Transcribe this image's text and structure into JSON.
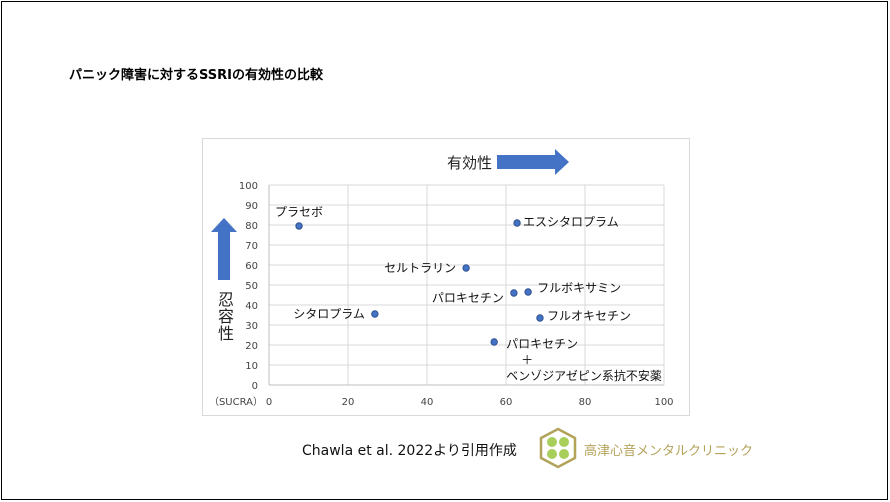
{
  "title": "パニック障害に対するSSRIの有効性の比較",
  "citation": "Chawla et al. 2022より引用作成",
  "clinic_name": "高津心音メンタルクリニック",
  "logo_icon": "clover-hexagon-logo",
  "colors": {
    "marker": "#4472c4",
    "arrow": "#4472c4",
    "grid": "#d9d9d9",
    "clinic_text": "#b3a35a"
  },
  "chart_data": {
    "type": "scatter",
    "title": "",
    "xlabel": "有効性",
    "ylabel": "忍容性",
    "unit_label": "（SUCRA）",
    "xlim": [
      0,
      100
    ],
    "ylim": [
      0,
      100
    ],
    "xticks": [
      0,
      20,
      40,
      60,
      80,
      100
    ],
    "yticks": [
      0,
      10,
      20,
      30,
      40,
      50,
      60,
      70,
      80,
      90,
      100
    ],
    "grid": true,
    "points": [
      {
        "label": "プラセボ",
        "x": 7.6,
        "y": 79.5
      },
      {
        "label": "エスシタロプラム",
        "x": 62.8,
        "y": 81
      },
      {
        "label": "セルトラリン",
        "x": 49.9,
        "y": 58.5
      },
      {
        "label": "パロキセチン",
        "x": 62,
        "y": 46
      },
      {
        "label": "フルボキサミン",
        "x": 65.6,
        "y": 46.5
      },
      {
        "label": "フルオキセチン",
        "x": 68.6,
        "y": 33.5
      },
      {
        "label": "シタロプラム",
        "x": 26.8,
        "y": 35.5
      },
      {
        "label": "パロキセチン\n＋\nベンゾジアゼピン系抗不安薬",
        "x": 57,
        "y": 21.5
      }
    ]
  }
}
